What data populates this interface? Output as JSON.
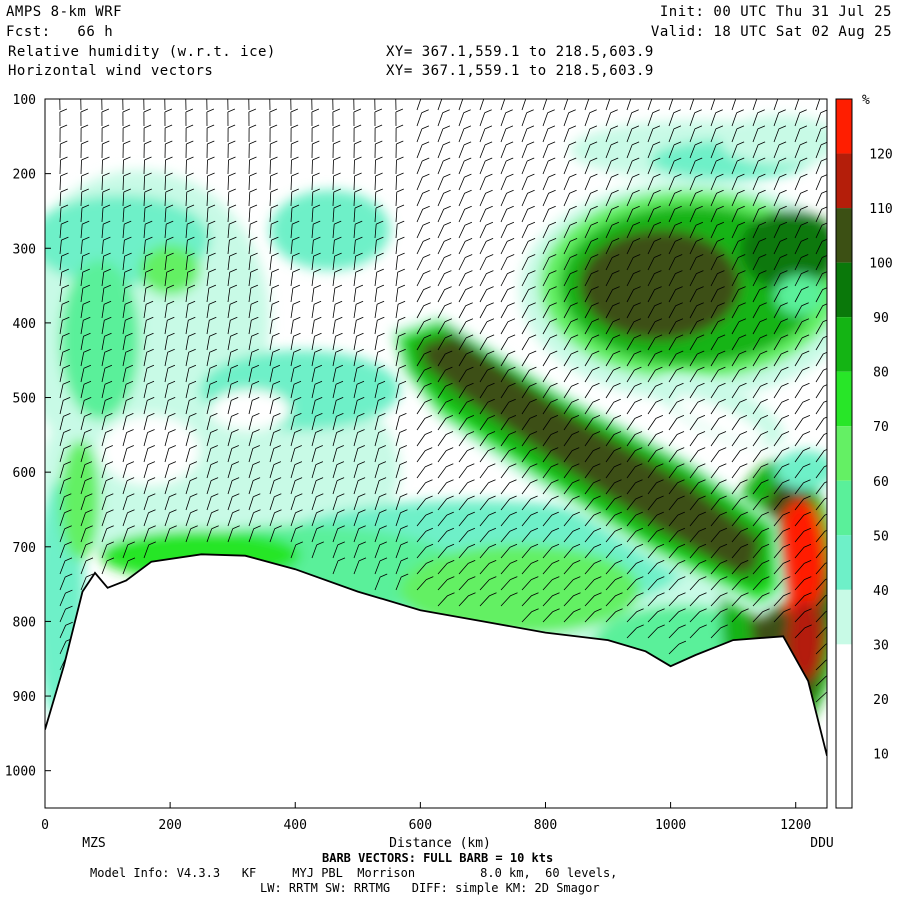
{
  "header": {
    "model": "AMPS 8-km WRF",
    "init": "Init: 00 UTC Thu 31 Jul 25",
    "fcst": "Fcst:   66 h",
    "valid": "Valid: 18 UTC Sat 02 Aug 25",
    "field1": "Relative humidity (w.r.t. ice)",
    "field1_xy": "XY= 367.1,559.1 to 218.5,603.9",
    "field2": "Horizontal wind vectors",
    "field2_xy": "XY= 367.1,559.1 to 218.5,603.9"
  },
  "chart_data": {
    "type": "heatmap",
    "title": "Relative humidity (w.r.t. ice)",
    "xlabel": "Distance (km)",
    "ylabel": "",
    "x_range": [
      0,
      1250
    ],
    "y_range_hPa": [
      1050,
      100
    ],
    "x_ticks": [
      0,
      200,
      400,
      600,
      800,
      1000,
      1200
    ],
    "x_tick_labels": [
      "0",
      "200",
      "400",
      "600",
      "800",
      "1000",
      "1200"
    ],
    "y_ticks": [
      100,
      200,
      300,
      400,
      500,
      600,
      700,
      800,
      900,
      1000
    ],
    "y_tick_labels": [
      "100",
      "200",
      "300",
      "400",
      "500",
      "600",
      "700",
      "800",
      "900",
      "1000"
    ],
    "endpoint_labels": [
      "MZS",
      "DDU"
    ],
    "colorbar": {
      "unit": "%",
      "levels": [
        10,
        20,
        30,
        40,
        50,
        60,
        70,
        80,
        90,
        100,
        110,
        120
      ],
      "labels": [
        "10",
        "20",
        "30",
        "40",
        "50",
        "60",
        "70",
        "80",
        "90",
        "100",
        "110",
        "120"
      ],
      "colors": [
        "#ffffff",
        "#ffffff",
        "#ffffff",
        "#c8fae6",
        "#6ef0c8",
        "#5af09a",
        "#64f064",
        "#28e628",
        "#14b414",
        "#0a780a",
        "#3c5014",
        "#b41e0a",
        "#ff1e00"
      ]
    },
    "terrain_hPa": [
      {
        "x": 0,
        "p": 945
      },
      {
        "x": 30,
        "p": 860
      },
      {
        "x": 60,
        "p": 760
      },
      {
        "x": 80,
        "p": 735
      },
      {
        "x": 100,
        "p": 755
      },
      {
        "x": 130,
        "p": 745
      },
      {
        "x": 170,
        "p": 720
      },
      {
        "x": 250,
        "p": 710
      },
      {
        "x": 320,
        "p": 712
      },
      {
        "x": 400,
        "p": 730
      },
      {
        "x": 500,
        "p": 760
      },
      {
        "x": 600,
        "p": 785
      },
      {
        "x": 700,
        "p": 800
      },
      {
        "x": 800,
        "p": 815
      },
      {
        "x": 900,
        "p": 825
      },
      {
        "x": 960,
        "p": 840
      },
      {
        "x": 1000,
        "p": 860
      },
      {
        "x": 1040,
        "p": 845
      },
      {
        "x": 1100,
        "p": 825
      },
      {
        "x": 1180,
        "p": 820
      },
      {
        "x": 1220,
        "p": 880
      },
      {
        "x": 1250,
        "p": 980
      }
    ]
  },
  "footer": {
    "barb_note": "BARB VECTORS: FULL BARB = 10 kts",
    "model_info": "Model Info: V4.3.3   KF     MYJ PBL  Morrison         8.0 km,  60 levels,",
    "physics": "LW: RRTM SW: RRTMG   DIFF: simple KM: 2D Smagor"
  }
}
